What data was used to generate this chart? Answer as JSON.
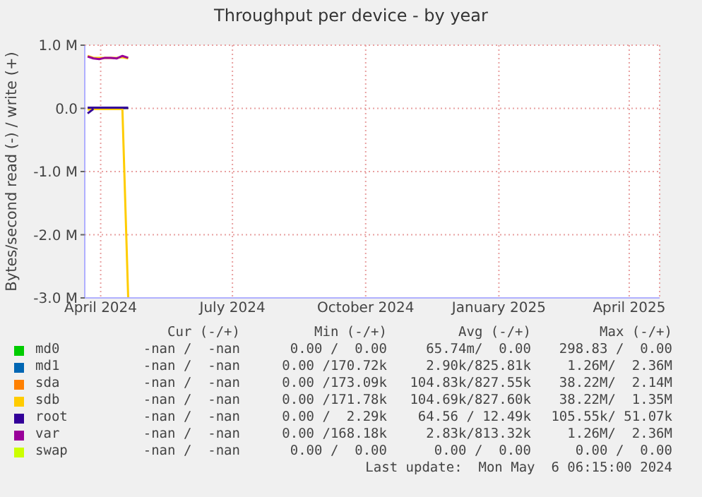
{
  "chart_data": {
    "type": "line",
    "title": "Throughput per device - by year",
    "ylabel": "Bytes/second read (-) / write (+)",
    "x": [
      "2024-03-23",
      "2024-03-27",
      "2024-03-31",
      "2024-04-04",
      "2024-04-08",
      "2024-04-12",
      "2024-04-16",
      "2024-04-20"
    ],
    "xlim": [
      "2024-03-21",
      "2025-04-22"
    ],
    "xticks": [
      {
        "value": "2024-04-01",
        "label": "April 2024"
      },
      {
        "value": "2024-07-01",
        "label": "July 2024"
      },
      {
        "value": "2024-10-01",
        "label": "October 2024"
      },
      {
        "value": "2025-01-01",
        "label": "January 2025"
      },
      {
        "value": "2025-04-01",
        "label": "April 2025"
      }
    ],
    "ylim": [
      -3000000,
      1000000
    ],
    "yticks": [
      {
        "value": -3000000,
        "label": "-3.0 M"
      },
      {
        "value": -2000000,
        "label": "-2.0 M"
      },
      {
        "value": -1000000,
        "label": "-1.0 M"
      },
      {
        "value": 0,
        "label": "0.0"
      },
      {
        "value": 1000000,
        "label": "1.0 M"
      }
    ],
    "grid": true,
    "legend": "bottom",
    "marker": "none",
    "line_style": "solid",
    "series": [
      {
        "name": "md0",
        "color": "#00cc00",
        "values": [
          null,
          null,
          null,
          null,
          null,
          null,
          null,
          null
        ]
      },
      {
        "name": "md1",
        "color": "#0066b3",
        "values": [
          null,
          null,
          null,
          null,
          null,
          null,
          null,
          null
        ]
      },
      {
        "name": "sda",
        "color": "#ff8000",
        "values": [
          null,
          null,
          null,
          null,
          null,
          null,
          null,
          null
        ]
      },
      {
        "name": "sdb",
        "color": "#ffcc00",
        "values": [
          830000,
          800000,
          800000,
          800000,
          800000,
          800000,
          810000,
          790000
        ]
      },
      {
        "color": "#ffcc00",
        "values": [
          -20000,
          -10000,
          -10000,
          -10000,
          -10000,
          -10000,
          -10000,
          -3000000
        ]
      },
      {
        "name": "root",
        "color": "#330099",
        "values": [
          10000,
          10000,
          10000,
          10000,
          10000,
          10000,
          10000,
          10000
        ]
      },
      {
        "color": "#330099",
        "values": [
          -80000,
          -10000,
          null,
          null,
          null,
          null,
          null,
          null
        ]
      },
      {
        "name": "var",
        "color": "#990099",
        "values": [
          820000,
          790000,
          780000,
          800000,
          800000,
          790000,
          830000,
          800000
        ]
      },
      {
        "name": "swap",
        "color": "#ccff00",
        "values": [
          null,
          null,
          null,
          null,
          null,
          null,
          null,
          null
        ]
      }
    ],
    "annotations": [
      "Cur (-/+)",
      "Min (-/+)",
      "Avg (-/+)",
      "Max (-/+)",
      "-nan /  -nan",
      "0.00 /  0.00",
      "65.74m/  0.00",
      "298.83 /  0.00",
      "-nan /  -nan",
      "0.00 /170.72k",
      "2.90k/825.81k",
      "1.26M/  2.36M",
      "-nan /  -nan",
      "0.00 /173.09k",
      "104.83k/827.55k",
      "38.22M/  2.14M",
      "-nan /  -nan",
      "0.00 /171.78k",
      "104.69k/827.60k",
      "38.22M/  1.35M",
      "-nan /  -nan",
      "0.00 /  2.29k",
      "64.56 / 12.49k",
      "105.55k/ 51.07k",
      "-nan /  -nan",
      "0.00 /168.18k",
      "2.83k/813.32k",
      "1.26M/  2.36M",
      "-nan /  -nan",
      "0.00 /  0.00",
      "0.00 /  0.00",
      "0.00 /  0.00",
      "Last update:  Mon May  6 06:15:00 2024"
    ]
  }
}
